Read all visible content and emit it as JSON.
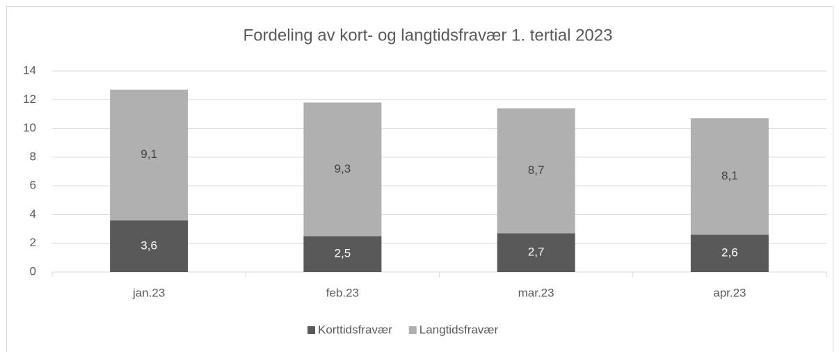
{
  "chart_data": {
    "type": "stacked_bar",
    "title": "Fordeling av kort- og langtidsfravær 1. tertial 2023",
    "categories": [
      "jan.23",
      "feb.23",
      "mar.23",
      "apr.23"
    ],
    "series": [
      {
        "name": "Korttidsfravær",
        "color": "#595959",
        "values": [
          3.6,
          2.5,
          2.7,
          2.6
        ],
        "value_labels": [
          "3,6",
          "2,5",
          "2,7",
          "2,6"
        ]
      },
      {
        "name": "Langtidsfravær",
        "color": "#b0b0b0",
        "values": [
          9.1,
          9.3,
          8.7,
          8.1
        ],
        "value_labels": [
          "9,1",
          "9,3",
          "8,7",
          "8,1"
        ]
      }
    ],
    "ylim": [
      0,
      14
    ],
    "yticks": [
      0,
      2,
      4,
      6,
      8,
      10,
      12,
      14
    ],
    "grid": true,
    "legend": "bottom"
  }
}
